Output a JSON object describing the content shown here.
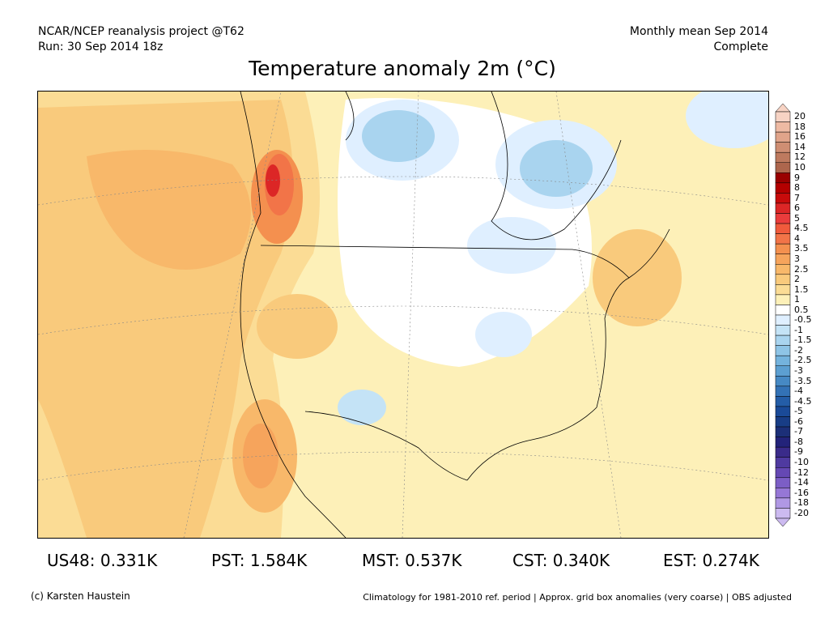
{
  "header": {
    "left_line1": "NCAR/NCEP reanalysis project @T62",
    "left_line2": "Run: 30 Sep 2014 18z",
    "right_line1": "Monthly mean Sep 2014",
    "right_line2": "Complete"
  },
  "title": "Temperature anomaly 2m (°C)",
  "colorbar": {
    "labels": [
      "20",
      "18",
      "16",
      "14",
      "12",
      "10",
      "9",
      "8",
      "7",
      "6",
      "5",
      "4.5",
      "4",
      "3.5",
      "3",
      "2.5",
      "2",
      "1.5",
      "1",
      "0.5",
      "-0.5",
      "-1",
      "-1.5",
      "-2",
      "-2.5",
      "-3",
      "-3.5",
      "-4",
      "-4.5",
      "-5",
      "-6",
      "-7",
      "-8",
      "-9",
      "-10",
      "-12",
      "-14",
      "-16",
      "-18",
      "-20"
    ],
    "colors": [
      "#f7d3c4",
      "#eebaa3",
      "#e0a48a",
      "#cf8e73",
      "#be7a5f",
      "#ad664d",
      "#9a0000",
      "#b40000",
      "#c80b0b",
      "#dc2626",
      "#ea3c3c",
      "#f05a3c",
      "#f27448",
      "#f4904f",
      "#f6a45c",
      "#f8b86a",
      "#f9ca7c",
      "#fbdc95",
      "#fdf0b8",
      "#ffffff",
      "#dfefff",
      "#c4e3f6",
      "#a9d4ef",
      "#8ec4e6",
      "#74b3dd",
      "#5c9fd1",
      "#4689c4",
      "#3372b6",
      "#245da7",
      "#1a4a98",
      "#183d86",
      "#1c2f78",
      "#23237a",
      "#3a2b8a",
      "#4f3aa0",
      "#6548b4",
      "#7c5ec6",
      "#9677d6",
      "#b098e4",
      "#ccbaf0"
    ]
  },
  "stats": [
    {
      "region": "US48",
      "value": "0.331K"
    },
    {
      "region": "PST",
      "value": "1.584K"
    },
    {
      "region": "MST",
      "value": "0.537K"
    },
    {
      "region": "CST",
      "value": "0.340K"
    },
    {
      "region": "EST",
      "value": "0.274K"
    }
  ],
  "footer": {
    "left": "(c) Karsten Haustein",
    "right": "Climatology for 1981-2010 ref. period | Approx. grid box anomalies (very coarse) | OBS adjusted"
  }
}
